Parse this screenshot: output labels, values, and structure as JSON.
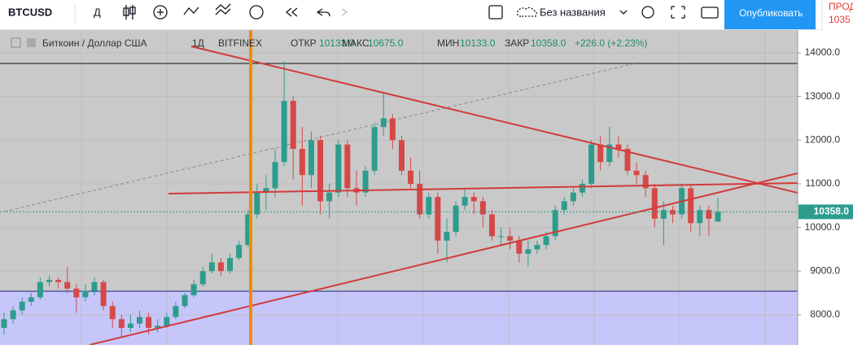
{
  "toolbar": {
    "symbol": "BTCUSD",
    "interval": "Д",
    "layout_name": "Без названия",
    "publish": "Опубликовать",
    "side_label": "ПРОД",
    "side_value": "1035"
  },
  "legend": {
    "name": "Биткоин / Доллар США",
    "interval": "1Д",
    "exchange": "BITFINEX",
    "open_label": "ОТКР",
    "open": "10133.0",
    "high_label": "МАКС",
    "high": "10675.0",
    "low_label": "МИН",
    "low": "10133.0",
    "close_label": "ЗАКР",
    "close": "10358.0",
    "change": "+226.0 (+2.23%)"
  },
  "price_label": "10358.0",
  "chart_data": {
    "type": "candlestick",
    "up_color": "#2e9c8c",
    "down_color": "#d64848",
    "grid": true,
    "ylim": [
      7310,
      14520
    ],
    "yticks": [
      {
        "value": 8000,
        "label": "8000.0"
      },
      {
        "value": 9000,
        "label": "9000.0"
      },
      {
        "value": 10000,
        "label": "10000.0"
      },
      {
        "value": 11000,
        "label": "11000.0"
      },
      {
        "value": 12000,
        "label": "12000.0"
      },
      {
        "value": 13000,
        "label": "13000.0"
      },
      {
        "value": 14000,
        "label": "14000.0"
      }
    ],
    "ohlc": [
      [
        7700,
        8050,
        7550,
        7900
      ],
      [
        7900,
        8200,
        7800,
        8100
      ],
      [
        8100,
        8400,
        8000,
        8300
      ],
      [
        8300,
        8500,
        8200,
        8400
      ],
      [
        8400,
        8850,
        8350,
        8750
      ],
      [
        8750,
        8900,
        8650,
        8800
      ],
      [
        8800,
        8850,
        8600,
        8750
      ],
      [
        8750,
        9100,
        8500,
        8600
      ],
      [
        8600,
        8700,
        8050,
        8400
      ],
      [
        8400,
        8700,
        8300,
        8550
      ],
      [
        8550,
        8850,
        8450,
        8750
      ],
      [
        8750,
        8800,
        8100,
        8200
      ],
      [
        8200,
        8300,
        7700,
        7900
      ],
      [
        7900,
        8000,
        7500,
        7700
      ],
      [
        7700,
        8000,
        7600,
        7800
      ],
      [
        7800,
        8100,
        7700,
        7950
      ],
      [
        7950,
        8050,
        7550,
        7700
      ],
      [
        7700,
        7900,
        7600,
        7750
      ],
      [
        7750,
        8050,
        7700,
        7950
      ],
      [
        7950,
        8300,
        7900,
        8200
      ],
      [
        8200,
        8500,
        8150,
        8450
      ],
      [
        8450,
        8800,
        8400,
        8700
      ],
      [
        8700,
        9100,
        8650,
        9000
      ],
      [
        9000,
        9400,
        8950,
        9200
      ],
      [
        9200,
        9300,
        8900,
        9000
      ],
      [
        9000,
        9400,
        8950,
        9300
      ],
      [
        9300,
        9700,
        9250,
        9600
      ],
      [
        9600,
        10400,
        9550,
        10300
      ],
      [
        10300,
        11000,
        10200,
        10800
      ],
      [
        10800,
        11200,
        10400,
        10900
      ],
      [
        10900,
        11800,
        10700,
        11500
      ],
      [
        11500,
        13800,
        11400,
        12900
      ],
      [
        12900,
        13000,
        11100,
        11800
      ],
      [
        11800,
        12300,
        10500,
        11200
      ],
      [
        11200,
        12200,
        10900,
        12000
      ],
      [
        12000,
        12100,
        10300,
        10600
      ],
      [
        10600,
        11000,
        10200,
        10800
      ],
      [
        10800,
        12000,
        10700,
        11900
      ],
      [
        11900,
        12000,
        10700,
        10900
      ],
      [
        10900,
        11300,
        10500,
        10800
      ],
      [
        10800,
        11400,
        10700,
        11300
      ],
      [
        11300,
        12400,
        11200,
        12300
      ],
      [
        12300,
        13100,
        12100,
        12500
      ],
      [
        12500,
        12600,
        11800,
        12000
      ],
      [
        12000,
        12100,
        11200,
        11300
      ],
      [
        11300,
        11600,
        10900,
        11000
      ],
      [
        11000,
        11300,
        10200,
        10300
      ],
      [
        10300,
        10800,
        10200,
        10700
      ],
      [
        10700,
        10800,
        9400,
        9700
      ],
      [
        9700,
        10200,
        9200,
        9900
      ],
      [
        9900,
        10600,
        9800,
        10500
      ],
      [
        10500,
        10900,
        10400,
        10700
      ],
      [
        10700,
        10800,
        10300,
        10600
      ],
      [
        10600,
        10700,
        10000,
        10300
      ],
      [
        10300,
        10400,
        9700,
        9800
      ],
      [
        9800,
        10000,
        9600,
        9800
      ],
      [
        9800,
        10000,
        9500,
        9700
      ],
      [
        9700,
        9800,
        9200,
        9400
      ],
      [
        9400,
        9700,
        9100,
        9500
      ],
      [
        9500,
        9700,
        9400,
        9600
      ],
      [
        9600,
        9900,
        9500,
        9800
      ],
      [
        9800,
        10500,
        9700,
        10400
      ],
      [
        10400,
        10700,
        10300,
        10600
      ],
      [
        10600,
        10900,
        10500,
        10800
      ],
      [
        10800,
        11100,
        10700,
        11000
      ],
      [
        11000,
        12000,
        10900,
        11900
      ],
      [
        11900,
        12100,
        11300,
        11500
      ],
      [
        11500,
        12300,
        11400,
        11900
      ],
      [
        11900,
        12100,
        11600,
        11800
      ],
      [
        11800,
        11900,
        11200,
        11300
      ],
      [
        11300,
        11500,
        11000,
        11200
      ],
      [
        11200,
        11300,
        10700,
        10900
      ],
      [
        10900,
        11000,
        10000,
        10200
      ],
      [
        10200,
        10600,
        9600,
        10400
      ],
      [
        10400,
        10500,
        10100,
        10300
      ],
      [
        10300,
        11000,
        10200,
        10900
      ],
      [
        10900,
        11000,
        9900,
        10100
      ],
      [
        10100,
        10500,
        9800,
        10400
      ],
      [
        10400,
        10500,
        9800,
        10200
      ],
      [
        10133,
        10675,
        10133,
        10358
      ]
    ]
  }
}
